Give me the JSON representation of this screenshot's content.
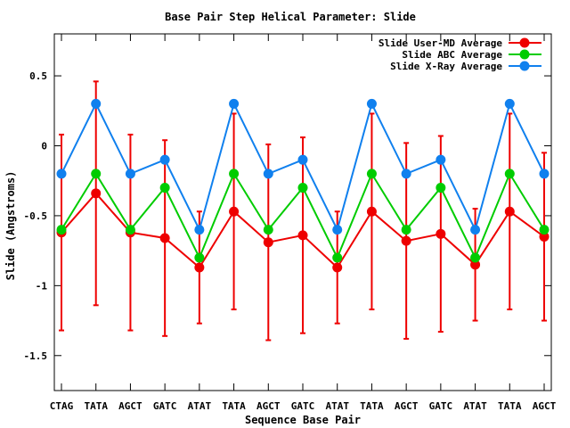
{
  "chart_data": {
    "type": "line",
    "title": "Base Pair Step Helical Parameter: Slide",
    "xlabel": "Sequence Base Pair",
    "ylabel": "Slide (Angstroms)",
    "ylim": [
      -1.75,
      0.8
    ],
    "yticks": [
      0.5,
      0,
      -0.5,
      -1,
      -1.5
    ],
    "ytick_labels": [
      "0.5",
      "0",
      "-0.5",
      "-1",
      "-1.5"
    ],
    "categories": [
      "CTAG",
      "TATA",
      "AGCT",
      "GATC",
      "ATAT",
      "TATA",
      "AGCT",
      "GATC",
      "ATAT",
      "TATA",
      "AGCT",
      "GATC",
      "ATAT",
      "TATA",
      "AGCT"
    ],
    "legend_position": "top-right",
    "grid": false,
    "series": [
      {
        "name": "Slide User-MD Average",
        "color": "#ee0000",
        "values": [
          -0.62,
          -0.34,
          -0.62,
          -0.66,
          -0.87,
          -0.47,
          -0.69,
          -0.64,
          -0.87,
          -0.47,
          -0.68,
          -0.63,
          -0.85,
          -0.47,
          -0.65
        ],
        "errors": [
          0.7,
          0.8,
          0.7,
          0.7,
          0.4,
          0.7,
          0.7,
          0.7,
          0.4,
          0.7,
          0.7,
          0.7,
          0.4,
          0.7,
          0.6
        ]
      },
      {
        "name": "Slide ABC Average",
        "color": "#00cc00",
        "values": [
          -0.6,
          -0.2,
          -0.6,
          -0.3,
          -0.8,
          -0.2,
          -0.6,
          -0.3,
          -0.8,
          -0.2,
          -0.6,
          -0.3,
          -0.8,
          -0.2,
          -0.6
        ]
      },
      {
        "name": "Slide X-Ray Average",
        "color": "#1080ee",
        "values": [
          -0.2,
          0.3,
          -0.2,
          -0.1,
          -0.6,
          0.3,
          -0.2,
          -0.1,
          -0.6,
          0.3,
          -0.2,
          -0.1,
          -0.6,
          0.3,
          -0.2
        ]
      }
    ]
  }
}
